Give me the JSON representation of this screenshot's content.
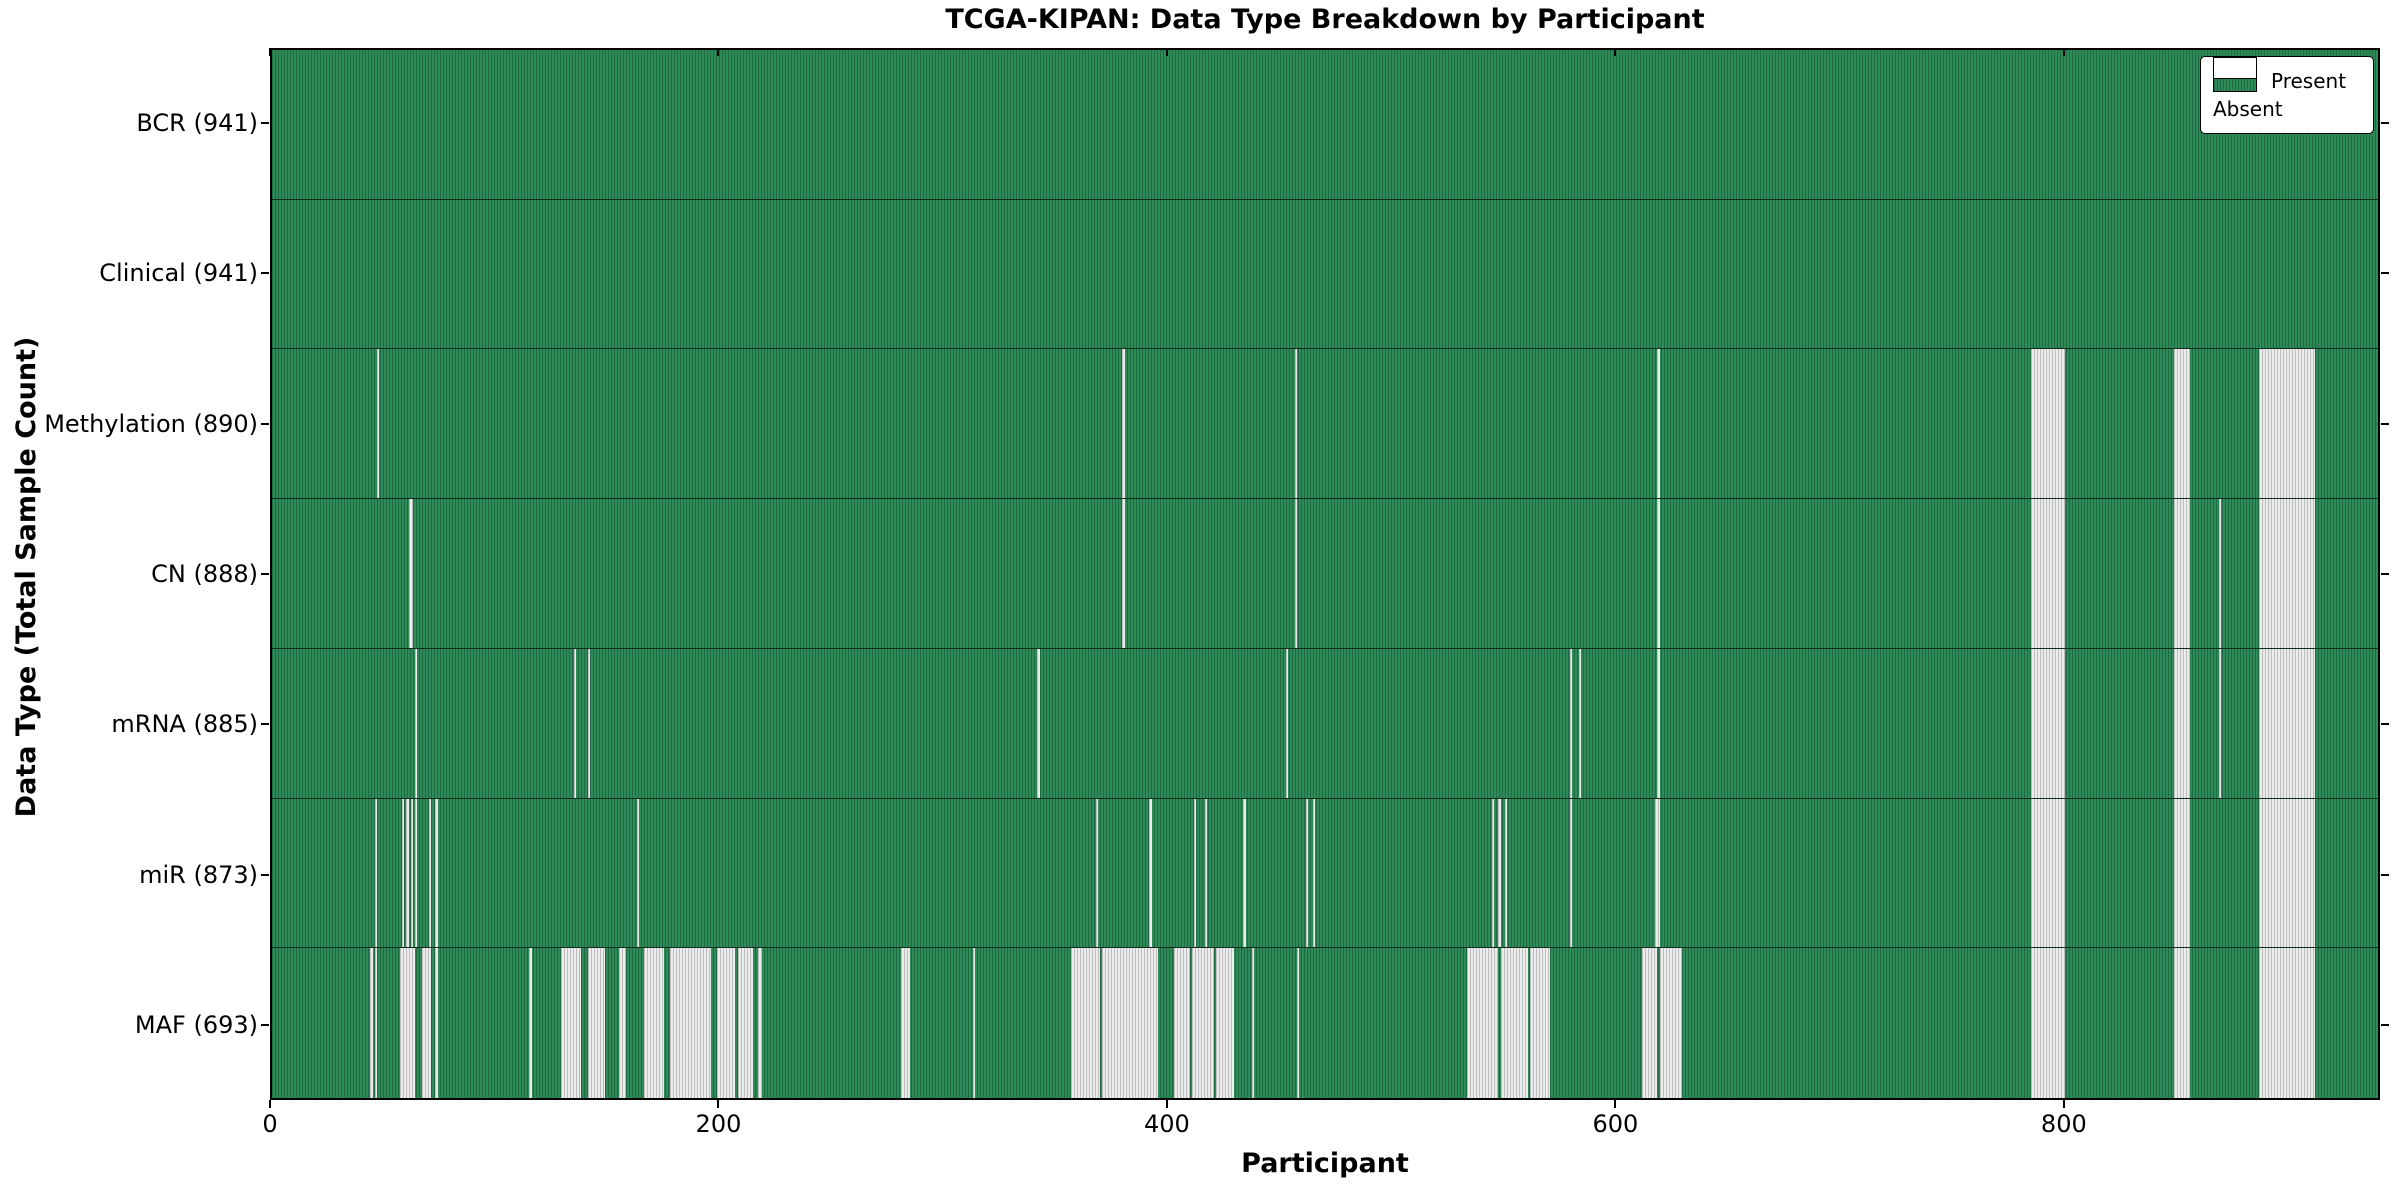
{
  "chart_data": {
    "type": "heatmap",
    "title": "TCGA-KIPAN: Data Type Breakdown by Participant",
    "xlabel": "Participant",
    "ylabel": "Data Type (Total Sample Count)",
    "x_range": [
      0,
      941
    ],
    "x_ticks": [
      0,
      200,
      400,
      600,
      800
    ],
    "legend": {
      "present_label": "Present",
      "absent_label": "Absent"
    },
    "colors": {
      "present": "#2e8b57",
      "present_edge": "#1f6b43",
      "absent": "#ececec",
      "absent_edge": "#bdbdbd",
      "border": "#000000"
    },
    "rows": [
      {
        "data_type": "BCR",
        "label": "BCR (941)",
        "present_count": 941,
        "absent_ranges": []
      },
      {
        "data_type": "Clinical",
        "label": "Clinical (941)",
        "present_count": 941,
        "absent_ranges": []
      },
      {
        "data_type": "Methylation",
        "label": "Methylation (890)",
        "present_count": 890,
        "absent_ranges": [
          [
            47,
            47
          ],
          [
            380,
            380
          ],
          [
            457,
            457
          ],
          [
            619,
            619
          ],
          [
            786,
            800
          ],
          [
            850,
            856
          ],
          [
            888,
            912
          ]
        ]
      },
      {
        "data_type": "CN",
        "label": "CN (888)",
        "present_count": 888,
        "absent_ranges": [
          [
            61,
            62
          ],
          [
            380,
            380
          ],
          [
            457,
            457
          ],
          [
            619,
            619
          ],
          [
            786,
            800
          ],
          [
            850,
            856
          ],
          [
            870,
            870
          ],
          [
            888,
            912
          ]
        ]
      },
      {
        "data_type": "mRNA",
        "label": "mRNA (885)",
        "present_count": 885,
        "absent_ranges": [
          [
            64,
            64
          ],
          [
            135,
            135
          ],
          [
            141,
            141
          ],
          [
            342,
            342
          ],
          [
            453,
            453
          ],
          [
            580,
            580
          ],
          [
            584,
            584
          ],
          [
            619,
            619
          ],
          [
            786,
            800
          ],
          [
            850,
            856
          ],
          [
            870,
            870
          ],
          [
            888,
            912
          ]
        ]
      },
      {
        "data_type": "miR",
        "label": "miR (873)",
        "present_count": 873,
        "absent_ranges": [
          [
            46,
            46
          ],
          [
            58,
            58
          ],
          [
            60,
            60
          ],
          [
            62,
            62
          ],
          [
            64,
            64
          ],
          [
            70,
            70
          ],
          [
            73,
            73
          ],
          [
            163,
            163
          ],
          [
            368,
            368
          ],
          [
            392,
            392
          ],
          [
            412,
            412
          ],
          [
            417,
            417
          ],
          [
            434,
            434
          ],
          [
            462,
            462
          ],
          [
            465,
            465
          ],
          [
            545,
            545
          ],
          [
            548,
            548
          ],
          [
            551,
            551
          ],
          [
            580,
            580
          ],
          [
            618,
            619
          ],
          [
            786,
            800
          ],
          [
            850,
            856
          ],
          [
            888,
            912
          ]
        ]
      },
      {
        "data_type": "MAF",
        "label": "MAF (693)",
        "present_count": 693,
        "absent_ranges": [
          [
            44,
            44
          ],
          [
            46,
            46
          ],
          [
            57,
            63
          ],
          [
            67,
            70
          ],
          [
            73,
            73
          ],
          [
            115,
            115
          ],
          [
            129,
            137
          ],
          [
            141,
            148
          ],
          [
            155,
            157
          ],
          [
            166,
            174
          ],
          [
            178,
            195
          ],
          [
            199,
            206
          ],
          [
            208,
            214
          ],
          [
            217,
            218
          ],
          [
            281,
            284
          ],
          [
            313,
            313
          ],
          [
            357,
            369
          ],
          [
            371,
            395
          ],
          [
            403,
            409
          ],
          [
            411,
            420
          ],
          [
            422,
            429
          ],
          [
            438,
            438
          ],
          [
            458,
            458
          ],
          [
            534,
            547
          ],
          [
            549,
            560
          ],
          [
            562,
            570
          ],
          [
            612,
            618
          ],
          [
            620,
            629
          ],
          [
            786,
            800
          ],
          [
            850,
            856
          ],
          [
            888,
            912
          ]
        ]
      }
    ]
  }
}
